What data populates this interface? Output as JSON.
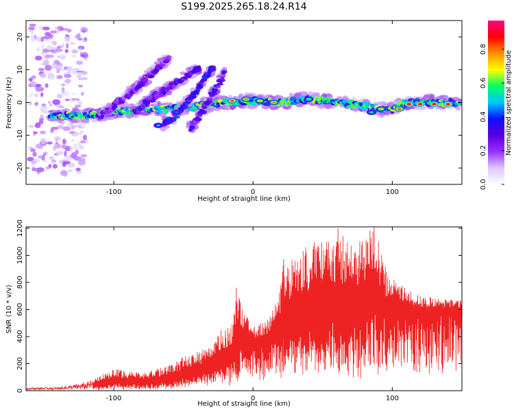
{
  "chart_data": [
    {
      "type": "heatmap",
      "title": "S199.2025.265.18.24.R14",
      "xlabel": "Height of straight line (km)",
      "ylabel": "Frequency (Hz)",
      "xlim": [
        -163,
        150
      ],
      "ylim": [
        -25,
        25
      ],
      "xticks": [
        -100,
        0,
        100
      ],
      "yticks": [
        20,
        10,
        0,
        -10,
        -20
      ],
      "colorbar": {
        "label": "Normalized spectral amplitude",
        "range": [
          0,
          0.97
        ],
        "ticks": [
          0.0,
          0.2,
          0.4,
          0.6,
          0.8
        ],
        "colormap": [
          "#ffffff",
          "#dcc8ff",
          "#9a30ff",
          "#5a00e0",
          "#1010ff",
          "#00c8ff",
          "#00ff60",
          "#ffff00",
          "#ff9000",
          "#ff0000",
          "#ff0088"
        ]
      },
      "ridges": [
        {
          "name": "main-trace",
          "points": [
            [
              -145,
              -4
            ],
            [
              -120,
              -4
            ],
            [
              -100,
              -3
            ],
            [
              -80,
              -2
            ],
            [
              -60,
              -2
            ],
            [
              -40,
              -1
            ],
            [
              -20,
              0
            ],
            [
              0,
              0.5
            ],
            [
              20,
              0
            ],
            [
              40,
              1
            ],
            [
              60,
              0
            ],
            [
              80,
              -1
            ],
            [
              90,
              -2
            ],
            [
              100,
              -2
            ],
            [
              110,
              0
            ],
            [
              150,
              0
            ]
          ],
          "amplitude": 0.55
        },
        {
          "name": "upper-branch-1",
          "points": [
            [
              -110,
              -4
            ],
            [
              -90,
              2
            ],
            [
              -75,
              8
            ],
            [
              -60,
              14
            ]
          ],
          "amplitude": 0.25
        },
        {
          "name": "upper-branch-2",
          "points": [
            [
              -85,
              -3
            ],
            [
              -70,
              2
            ],
            [
              -55,
              6
            ],
            [
              -38,
              11
            ]
          ],
          "amplitude": 0.3
        },
        {
          "name": "steep-branch-1",
          "points": [
            [
              -65,
              -7
            ],
            [
              -55,
              -4
            ],
            [
              -45,
              1
            ],
            [
              -35,
              7
            ],
            [
              -28,
              11
            ]
          ],
          "amplitude": 0.35
        },
        {
          "name": "steep-branch-2",
          "points": [
            [
              -45,
              -8
            ],
            [
              -38,
              -4
            ],
            [
              -30,
              2
            ],
            [
              -20,
              9
            ]
          ],
          "amplitude": 0.3
        },
        {
          "name": "scatter-cloud",
          "points": [
            [
              -160,
              -22
            ],
            [
              -145,
              20
            ]
          ],
          "amplitude": 0.12
        }
      ],
      "hotspots": [
        [
          -15,
          0.5,
          0.85
        ],
        [
          -5,
          1,
          0.8
        ],
        [
          5,
          0.5,
          0.75
        ],
        [
          15,
          0,
          0.8
        ],
        [
          40,
          1,
          0.6
        ],
        [
          85,
          -3,
          0.55
        ],
        [
          92,
          -2,
          0.75
        ],
        [
          105,
          -2,
          0.85
        ],
        [
          112,
          -0.5,
          0.95
        ],
        [
          120,
          -0.5,
          0.95
        ],
        [
          130,
          -0.5,
          0.95
        ],
        [
          140,
          -0.5,
          0.9
        ],
        [
          -68,
          -7,
          0.5
        ],
        [
          -55,
          -3,
          0.45
        ]
      ]
    },
    {
      "type": "line",
      "xlabel": "Height of straight line (km)",
      "ylabel": "SNR (10 * v/v)",
      "xlim": [
        -163,
        150
      ],
      "ylim": [
        0,
        1210
      ],
      "xticks": [
        -100,
        0,
        100
      ],
      "yticks": [
        0,
        200,
        400,
        600,
        800,
        1000,
        1200
      ],
      "color": "#ee2222",
      "envelope": [
        [
          -163,
          22
        ],
        [
          -140,
          25
        ],
        [
          -120,
          60
        ],
        [
          -110,
          110
        ],
        [
          -100,
          160
        ],
        [
          -80,
          130
        ],
        [
          -60,
          190
        ],
        [
          -50,
          250
        ],
        [
          -40,
          290
        ],
        [
          -30,
          340
        ],
        [
          -25,
          440
        ],
        [
          -15,
          500
        ],
        [
          -12,
          760
        ],
        [
          -8,
          620
        ],
        [
          0,
          470
        ],
        [
          10,
          520
        ],
        [
          18,
          700
        ],
        [
          22,
          960
        ],
        [
          30,
          1000
        ],
        [
          40,
          1080
        ],
        [
          50,
          1130
        ],
        [
          60,
          1200
        ],
        [
          70,
          1080
        ],
        [
          80,
          1150
        ],
        [
          88,
          1200
        ],
        [
          95,
          920
        ],
        [
          100,
          830
        ],
        [
          110,
          760
        ],
        [
          120,
          700
        ],
        [
          130,
          690
        ],
        [
          140,
          680
        ],
        [
          150,
          670
        ]
      ],
      "baseline": [
        [
          -163,
          8
        ],
        [
          -130,
          10
        ],
        [
          -100,
          18
        ],
        [
          -60,
          30
        ],
        [
          -40,
          60
        ],
        [
          -20,
          120
        ],
        [
          -10,
          200
        ],
        [
          0,
          280
        ],
        [
          20,
          300
        ],
        [
          40,
          300
        ],
        [
          60,
          330
        ],
        [
          80,
          350
        ],
        [
          100,
          460
        ],
        [
          110,
          510
        ],
        [
          130,
          530
        ],
        [
          150,
          540
        ]
      ],
      "spikes": [
        [
          -12,
          760
        ],
        [
          22,
          970
        ],
        [
          38,
          990
        ],
        [
          52,
          1000
        ],
        [
          61,
          1200
        ],
        [
          76,
          1000
        ],
        [
          84,
          1180
        ],
        [
          87,
          1210
        ]
      ]
    }
  ]
}
